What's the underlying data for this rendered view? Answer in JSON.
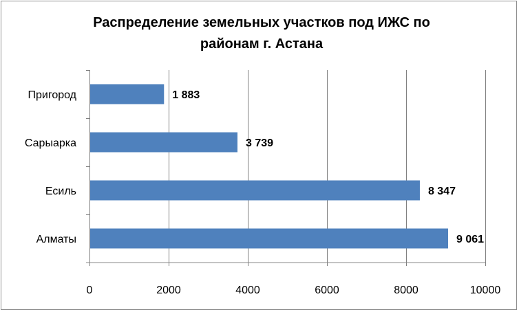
{
  "chart_data": {
    "type": "bar",
    "orientation": "horizontal",
    "title_lines": [
      "Распределение земельных участков под ИЖС по",
      "районам г. Астана"
    ],
    "categories": [
      "Пригород",
      "Сарыарка",
      "Есиль",
      "Алматы"
    ],
    "values": [
      1883,
      3739,
      8347,
      9061
    ],
    "data_labels": [
      "1 883",
      "3 739",
      "8 347",
      "9 061"
    ],
    "xlim": [
      0,
      10000
    ],
    "x_ticks": [
      0,
      2000,
      4000,
      6000,
      8000,
      10000
    ],
    "gridlines": "vertical",
    "legend": "none",
    "bar_color": "#4f81bd",
    "grid_color": "#808080"
  }
}
